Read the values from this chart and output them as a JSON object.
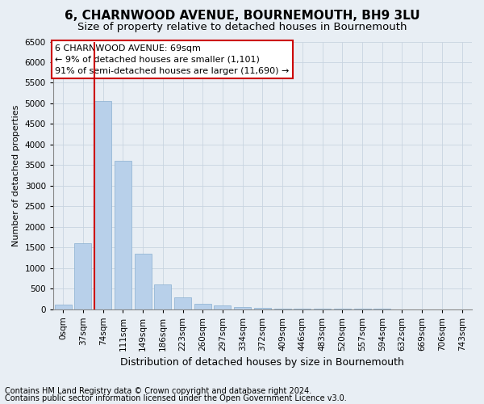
{
  "title1": "6, CHARNWOOD AVENUE, BOURNEMOUTH, BH9 3LU",
  "title2": "Size of property relative to detached houses in Bournemouth",
  "xlabel": "Distribution of detached houses by size in Bournemouth",
  "ylabel": "Number of detached properties",
  "footer1": "Contains HM Land Registry data © Crown copyright and database right 2024.",
  "footer2": "Contains public sector information licensed under the Open Government Licence v3.0.",
  "categories": [
    "0sqm",
    "37sqm",
    "74sqm",
    "111sqm",
    "149sqm",
    "186sqm",
    "223sqm",
    "260sqm",
    "297sqm",
    "334sqm",
    "372sqm",
    "409sqm",
    "446sqm",
    "483sqm",
    "520sqm",
    "557sqm",
    "594sqm",
    "632sqm",
    "669sqm",
    "706sqm",
    "743sqm"
  ],
  "values": [
    100,
    1600,
    5050,
    3600,
    1350,
    600,
    280,
    130,
    95,
    50,
    30,
    15,
    8,
    4,
    2,
    1,
    1,
    0,
    0,
    0,
    0
  ],
  "bar_color": "#b8d0ea",
  "bar_edge_color": "#8ab0d0",
  "red_line_index": 2,
  "annotation_text_line1": "6 CHARNWOOD AVENUE: 69sqm",
  "annotation_text_line2": "← 9% of detached houses are smaller (1,101)",
  "annotation_text_line3": "91% of semi-detached houses are larger (11,690) →",
  "annotation_box_color": "#ffffff",
  "annotation_box_edge_color": "#cc0000",
  "red_line_color": "#cc0000",
  "ylim": [
    0,
    6500
  ],
  "yticks": [
    0,
    500,
    1000,
    1500,
    2000,
    2500,
    3000,
    3500,
    4000,
    4500,
    5000,
    5500,
    6000,
    6500
  ],
  "background_color": "#e8eef4",
  "grid_color": "#c8d4e0",
  "title1_fontsize": 11,
  "title2_fontsize": 9.5,
  "xlabel_fontsize": 9,
  "ylabel_fontsize": 8,
  "tick_fontsize": 7.5,
  "annotation_fontsize": 8,
  "footer_fontsize": 7
}
